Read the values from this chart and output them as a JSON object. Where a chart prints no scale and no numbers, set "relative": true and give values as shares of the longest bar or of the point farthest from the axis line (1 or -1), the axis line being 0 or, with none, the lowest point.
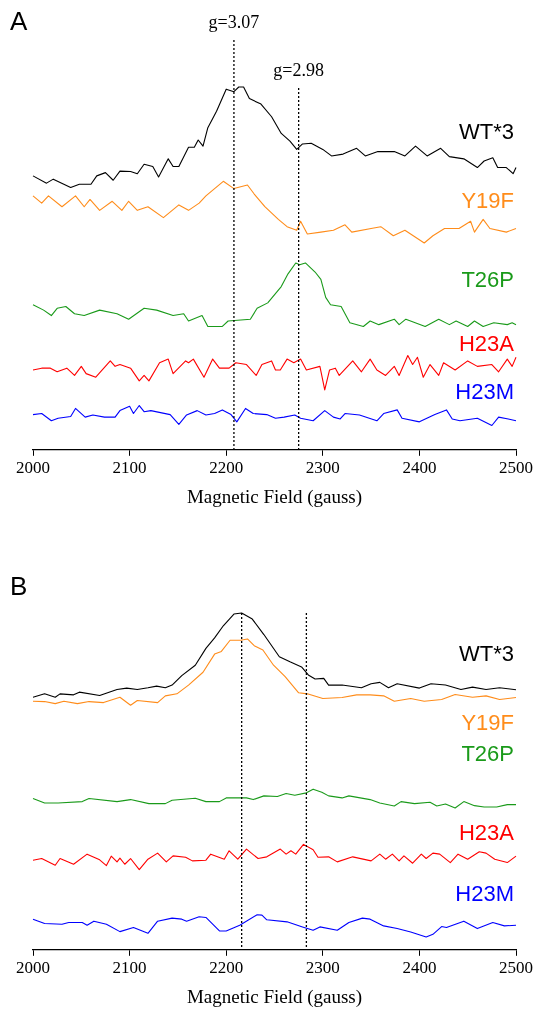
{
  "chart_data": [
    {
      "type": "line",
      "title": "A",
      "xlabel": "Magnetic Field (gauss)",
      "xlim": [
        2000,
        2500
      ],
      "xticks": [
        2000,
        2100,
        2200,
        2300,
        2400,
        2500
      ],
      "relative": true,
      "grid": false,
      "legend": false,
      "marker": "none",
      "line_style": "solid",
      "annotations": [
        "g=3.07",
        "g=2.98"
      ],
      "ref_lines": [
        {
          "axis": "x",
          "value": 2208,
          "label": null,
          "line_style": "dotted",
          "color": "#000000"
        },
        {
          "axis": "x",
          "value": 2275,
          "label": null,
          "line_style": "dotted",
          "color": "#000000"
        }
      ],
      "series": [
        {
          "name": "WT*3",
          "color": "#000000",
          "x": [
            2000,
            2014,
            2021,
            2039,
            2048,
            2060,
            2066,
            2075,
            2083,
            2090,
            2101,
            2108,
            2115,
            2124,
            2130,
            2140,
            2145,
            2151,
            2161,
            2167,
            2171,
            2176,
            2181,
            2190,
            2200,
            2208,
            2213,
            2218,
            2224,
            2236,
            2247,
            2257,
            2266,
            2273,
            2279,
            2288,
            2300,
            2309,
            2321,
            2335,
            2344,
            2357,
            2374,
            2385,
            2396,
            2408,
            2422,
            2431,
            2446,
            2460,
            2467,
            2476,
            2481,
            2490,
            2497,
            2500
          ],
          "values": [
            0.755,
            0.735,
            0.746,
            0.723,
            0.732,
            0.732,
            0.755,
            0.764,
            0.743,
            0.768,
            0.767,
            0.761,
            0.787,
            0.781,
            0.752,
            0.802,
            0.781,
            0.781,
            0.834,
            0.834,
            0.854,
            0.837,
            0.888,
            0.933,
            0.994,
            0.987,
            1,
            1,
            0.968,
            0.953,
            0.918,
            0.872,
            0.851,
            0.828,
            0.843,
            0.845,
            0.828,
            0.81,
            0.815,
            0.831,
            0.81,
            0.822,
            0.822,
            0.81,
            0.837,
            0.81,
            0.831,
            0.808,
            0.802,
            0.778,
            0.796,
            0.805,
            0.778,
            0.778,
            0.761,
            0.778
          ]
        },
        {
          "name": "Y19F",
          "color": "#ff8c1a",
          "x": [
            2000,
            2009,
            2016,
            2030,
            2044,
            2053,
            2059,
            2069,
            2082,
            2092,
            2099,
            2108,
            2119,
            2135,
            2151,
            2161,
            2172,
            2179,
            2197,
            2208,
            2222,
            2229,
            2240,
            2254,
            2263,
            2273,
            2277,
            2284,
            2298,
            2311,
            2323,
            2330,
            2350,
            2360,
            2373,
            2385,
            2405,
            2414,
            2426,
            2441,
            2453,
            2457,
            2466,
            2473,
            2490,
            2500
          ],
          "values": [
            0.7,
            0.68,
            0.7,
            0.67,
            0.7,
            0.67,
            0.69,
            0.66,
            0.685,
            0.66,
            0.685,
            0.66,
            0.67,
            0.64,
            0.675,
            0.66,
            0.68,
            0.7,
            0.74,
            0.72,
            0.73,
            0.705,
            0.67,
            0.635,
            0.615,
            0.605,
            0.63,
            0.595,
            0.6,
            0.605,
            0.62,
            0.6,
            0.61,
            0.615,
            0.59,
            0.605,
            0.57,
            0.59,
            0.61,
            0.61,
            0.63,
            0.6,
            0.635,
            0.61,
            0.6,
            0.61
          ]
        },
        {
          "name": "T26P",
          "color": "#1a9a1a",
          "x": [
            2000,
            2011,
            2019,
            2025,
            2034,
            2043,
            2053,
            2069,
            2087,
            2099,
            2115,
            2128,
            2145,
            2156,
            2161,
            2175,
            2181,
            2196,
            2202,
            2225,
            2232,
            2243,
            2257,
            2264,
            2272,
            2276,
            2282,
            2292,
            2298,
            2303,
            2308,
            2319,
            2328,
            2342,
            2349,
            2358,
            2374,
            2379,
            2386,
            2406,
            2420,
            2431,
            2438,
            2450,
            2457,
            2466,
            2477,
            2491,
            2496,
            2500
          ],
          "values": [
            0.4,
            0.385,
            0.37,
            0.39,
            0.395,
            0.375,
            0.37,
            0.385,
            0.375,
            0.36,
            0.39,
            0.385,
            0.37,
            0.375,
            0.355,
            0.37,
            0.34,
            0.34,
            0.355,
            0.36,
            0.39,
            0.405,
            0.45,
            0.485,
            0.515,
            0.51,
            0.515,
            0.49,
            0.47,
            0.42,
            0.4,
            0.395,
            0.35,
            0.34,
            0.355,
            0.345,
            0.36,
            0.345,
            0.36,
            0.34,
            0.36,
            0.345,
            0.355,
            0.34,
            0.355,
            0.34,
            0.35,
            0.345,
            0.35,
            0.345
          ]
        },
        {
          "name": "H23A",
          "color": "#ff0000",
          "x": [
            2000,
            2009,
            2018,
            2025,
            2035,
            2043,
            2050,
            2055,
            2065,
            2080,
            2085,
            2090,
            2101,
            2110,
            2115,
            2120,
            2131,
            2140,
            2145,
            2158,
            2161,
            2166,
            2177,
            2186,
            2193,
            2203,
            2210,
            2221,
            2231,
            2237,
            2247,
            2251,
            2256,
            2263,
            2270,
            2277,
            2283,
            2297,
            2302,
            2307,
            2313,
            2317,
            2331,
            2340,
            2349,
            2356,
            2365,
            2374,
            2379,
            2388,
            2393,
            2398,
            2404,
            2411,
            2420,
            2425,
            2437,
            2450,
            2460,
            2475,
            2482,
            2491,
            2496,
            2500
          ],
          "values": [
            0.22,
            0.225,
            0.225,
            0.215,
            0.225,
            0.205,
            0.23,
            0.21,
            0.2,
            0.245,
            0.23,
            0.235,
            0.225,
            0.19,
            0.205,
            0.19,
            0.24,
            0.25,
            0.21,
            0.245,
            0.24,
            0.25,
            0.2,
            0.25,
            0.225,
            0.225,
            0.24,
            0.235,
            0.205,
            0.235,
            0.245,
            0.22,
            0.22,
            0.25,
            0.24,
            0.25,
            0.22,
            0.23,
            0.165,
            0.22,
            0.225,
            0.205,
            0.245,
            0.215,
            0.25,
            0.22,
            0.205,
            0.23,
            0.205,
            0.26,
            0.235,
            0.255,
            0.2,
            0.235,
            0.205,
            0.24,
            0.22,
            0.245,
            0.23,
            0.235,
            0.215,
            0.25,
            0.23,
            0.255
          ]
        },
        {
          "name": "H23M",
          "color": "#0000ff",
          "x": [
            2000,
            2009,
            2019,
            2026,
            2039,
            2044,
            2054,
            2062,
            2074,
            2085,
            2090,
            2100,
            2104,
            2110,
            2115,
            2122,
            2142,
            2151,
            2159,
            2170,
            2179,
            2188,
            2196,
            2205,
            2211,
            2220,
            2228,
            2242,
            2251,
            2260,
            2271,
            2277,
            2290,
            2302,
            2311,
            2318,
            2323,
            2338,
            2356,
            2363,
            2377,
            2382,
            2400,
            2416,
            2428,
            2434,
            2442,
            2460,
            2475,
            2482,
            2492,
            2500
          ],
          "values": [
            0.097,
            0.1,
            0.08,
            0.087,
            0.092,
            0.114,
            0.09,
            0.096,
            0.09,
            0.09,
            0.108,
            0.12,
            0.1,
            0.122,
            0.105,
            0.108,
            0.097,
            0.07,
            0.096,
            0.108,
            0.096,
            0.1,
            0.11,
            0.097,
            0.077,
            0.114,
            0.1,
            0.097,
            0.087,
            0.09,
            0.096,
            0.087,
            0.08,
            0.108,
            0.09,
            0.085,
            0.1,
            0.096,
            0.08,
            0.1,
            0.11,
            0.087,
            0.077,
            0.097,
            0.11,
            0.085,
            0.08,
            0.087,
            0.067,
            0.09,
            0.085,
            0.08
          ]
        }
      ]
    },
    {
      "type": "line",
      "title": "B",
      "xlabel": "Magnetic Field (gauss)",
      "xlim": [
        2000,
        2500
      ],
      "xticks": [
        2000,
        2100,
        2200,
        2300,
        2400,
        2500
      ],
      "relative": true,
      "grid": false,
      "legend": false,
      "marker": "none",
      "line_style": "solid",
      "ref_lines": [
        {
          "axis": "x",
          "value": 2216,
          "label": null,
          "line_style": "dotted",
          "color": "#000000"
        },
        {
          "axis": "x",
          "value": 2283,
          "label": null,
          "line_style": "dotted",
          "color": "#000000"
        }
      ],
      "series": [
        {
          "name": "WT*3",
          "color": "#000000",
          "x": [
            2000,
            2012,
            2023,
            2028,
            2042,
            2048,
            2069,
            2087,
            2097,
            2108,
            2119,
            2128,
            2137,
            2144,
            2154,
            2168,
            2179,
            2188,
            2197,
            2208,
            2216,
            2227,
            2239,
            2255,
            2266,
            2278,
            2285,
            2292,
            2301,
            2306,
            2320,
            2340,
            2350,
            2359,
            2368,
            2377,
            2400,
            2412,
            2427,
            2443,
            2455,
            2469,
            2483,
            2500
          ],
          "values": [
            0.75,
            0.76,
            0.75,
            0.76,
            0.757,
            0.765,
            0.755,
            0.773,
            0.777,
            0.773,
            0.778,
            0.783,
            0.778,
            0.786,
            0.814,
            0.845,
            0.895,
            0.926,
            0.962,
            0.997,
            1,
            0.982,
            0.936,
            0.87,
            0.855,
            0.84,
            0.816,
            0.804,
            0.806,
            0.786,
            0.786,
            0.778,
            0.79,
            0.794,
            0.778,
            0.79,
            0.777,
            0.79,
            0.786,
            0.773,
            0.78,
            0.773,
            0.778,
            0.772
          ]
        },
        {
          "name": "Y19F",
          "color": "#ff8c1a",
          "x": [
            2000,
            2012,
            2023,
            2032,
            2046,
            2058,
            2073,
            2090,
            2101,
            2108,
            2129,
            2137,
            2149,
            2161,
            2176,
            2188,
            2195,
            2204,
            2215,
            2222,
            2229,
            2238,
            2249,
            2261,
            2275,
            2284,
            2300,
            2320,
            2335,
            2349,
            2363,
            2374,
            2391,
            2405,
            2423,
            2437,
            2455,
            2469,
            2483,
            2500
          ],
          "values": [
            0.738,
            0.737,
            0.731,
            0.738,
            0.731,
            0.737,
            0.734,
            0.75,
            0.726,
            0.74,
            0.734,
            0.754,
            0.76,
            0.786,
            0.824,
            0.878,
            0.886,
            0.919,
            0.919,
            0.923,
            0.903,
            0.89,
            0.845,
            0.811,
            0.763,
            0.76,
            0.746,
            0.749,
            0.757,
            0.757,
            0.754,
            0.738,
            0.746,
            0.738,
            0.743,
            0.758,
            0.75,
            0.754,
            0.743,
            0.749
          ]
        },
        {
          "name": "T26P",
          "color": "#1a9a1a",
          "x": [
            2000,
            2012,
            2026,
            2051,
            2058,
            2087,
            2101,
            2120,
            2137,
            2144,
            2168,
            2179,
            2193,
            2200,
            2221,
            2228,
            2239,
            2253,
            2262,
            2271,
            2283,
            2290,
            2299,
            2306,
            2320,
            2327,
            2349,
            2359,
            2374,
            2381,
            2395,
            2411,
            2418,
            2427,
            2437,
            2446,
            2457,
            2467,
            2480,
            2491,
            2500
          ],
          "values": [
            0.449,
            0.436,
            0.436,
            0.44,
            0.449,
            0.44,
            0.446,
            0.434,
            0.434,
            0.444,
            0.45,
            0.44,
            0.44,
            0.451,
            0.451,
            0.446,
            0.457,
            0.455,
            0.464,
            0.459,
            0.466,
            0.477,
            0.468,
            0.457,
            0.451,
            0.457,
            0.446,
            0.436,
            0.427,
            0.44,
            0.434,
            0.438,
            0.427,
            0.433,
            0.421,
            0.44,
            0.428,
            0.424,
            0.424,
            0.431,
            0.431
          ]
        },
        {
          "name": "H23A",
          "color": "#ff0000",
          "x": [
            2000,
            2009,
            2023,
            2028,
            2042,
            2056,
            2069,
            2076,
            2081,
            2087,
            2090,
            2095,
            2101,
            2110,
            2119,
            2129,
            2138,
            2145,
            2158,
            2165,
            2179,
            2184,
            2198,
            2203,
            2212,
            2221,
            2233,
            2242,
            2256,
            2262,
            2267,
            2272,
            2280,
            2290,
            2295,
            2306,
            2315,
            2331,
            2350,
            2359,
            2365,
            2372,
            2379,
            2384,
            2393,
            2402,
            2407,
            2414,
            2421,
            2432,
            2440,
            2450,
            2462,
            2469,
            2478,
            2491,
            2500
          ],
          "values": [
            0.266,
            0.271,
            0.251,
            0.271,
            0.254,
            0.284,
            0.267,
            0.25,
            0.278,
            0.261,
            0.272,
            0.254,
            0.271,
            0.238,
            0.269,
            0.287,
            0.261,
            0.279,
            0.275,
            0.264,
            0.266,
            0.284,
            0.269,
            0.294,
            0.269,
            0.299,
            0.271,
            0.276,
            0.299,
            0.284,
            0.294,
            0.284,
            0.313,
            0.297,
            0.275,
            0.276,
            0.261,
            0.276,
            0.264,
            0.284,
            0.269,
            0.284,
            0.264,
            0.279,
            0.257,
            0.284,
            0.271,
            0.287,
            0.284,
            0.259,
            0.284,
            0.269,
            0.291,
            0.287,
            0.269,
            0.259,
            0.278
          ]
        },
        {
          "name": "H23M",
          "color": "#0000ff",
          "x": [
            2000,
            2012,
            2030,
            2037,
            2051,
            2056,
            2063,
            2076,
            2090,
            2104,
            2119,
            2129,
            2144,
            2154,
            2159,
            2172,
            2179,
            2193,
            2200,
            2214,
            2232,
            2237,
            2242,
            2263,
            2279,
            2290,
            2297,
            2315,
            2327,
            2341,
            2349,
            2363,
            2377,
            2391,
            2407,
            2414,
            2423,
            2428,
            2446,
            2460,
            2476,
            2488,
            2500
          ],
          "values": [
            0.091,
            0.078,
            0.076,
            0.081,
            0.081,
            0.073,
            0.085,
            0.076,
            0.054,
            0.066,
            0.049,
            0.085,
            0.094,
            0.091,
            0.085,
            0.098,
            0.096,
            0.056,
            0.056,
            0.073,
            0.104,
            0.103,
            0.089,
            0.083,
            0.068,
            0.058,
            0.068,
            0.058,
            0.081,
            0.094,
            0.091,
            0.071,
            0.063,
            0.053,
            0.038,
            0.046,
            0.069,
            0.066,
            0.085,
            0.063,
            0.081,
            0.071,
            0.073
          ]
        }
      ]
    }
  ]
}
